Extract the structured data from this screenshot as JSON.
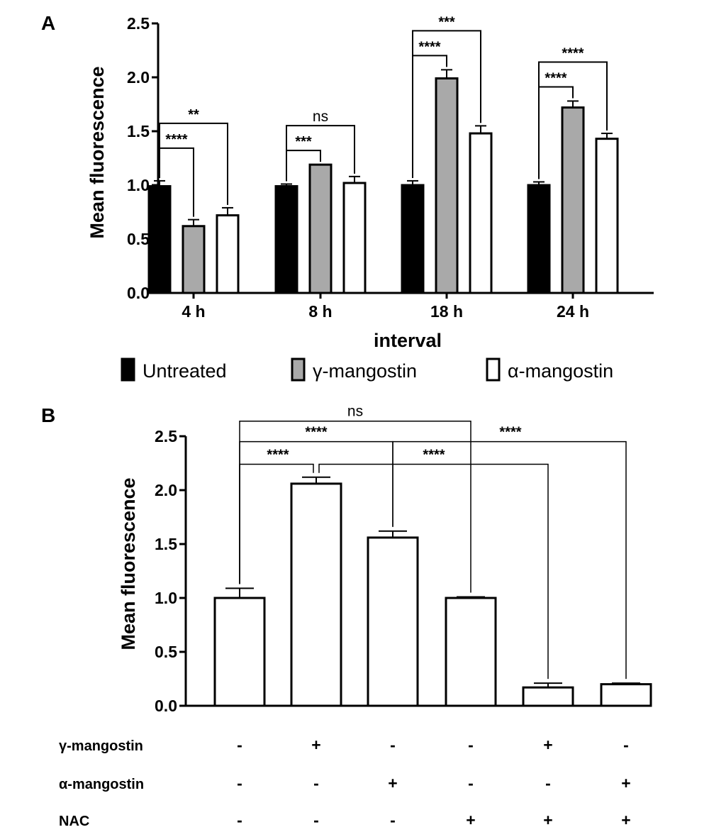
{
  "chart_data": [
    {
      "panel": "A",
      "type": "bar",
      "xlabel": "interval",
      "ylabel": "Mean fluorescence",
      "ylim": [
        0,
        2.5
      ],
      "yticks": [
        "0.0",
        "0.5",
        "1.0",
        "1.5",
        "2.0",
        "2.5"
      ],
      "categories": [
        "4 h",
        "8 h",
        "18 h",
        "24 h"
      ],
      "legend_position": "bottom",
      "series": [
        {
          "name": "Untreated",
          "color": "#000000",
          "values": [
            0.99,
            0.99,
            1.0,
            1.0
          ],
          "errors": [
            0.05,
            0.02,
            0.04,
            0.03
          ]
        },
        {
          "name": "γ-mangostin",
          "color": "#a9a9a9",
          "values": [
            0.62,
            1.19,
            1.99,
            1.72
          ],
          "errors": [
            0.06,
            0.0,
            0.08,
            0.06
          ]
        },
        {
          "name": "α-mangostin",
          "color": "#ffffff",
          "values": [
            0.72,
            1.02,
            1.48,
            1.43
          ],
          "errors": [
            0.07,
            0.06,
            0.07,
            0.05
          ]
        }
      ],
      "significance": [
        {
          "group": 0,
          "from": 0,
          "to": 1,
          "label": "****"
        },
        {
          "group": 0,
          "from": 0,
          "to": 2,
          "label": "**"
        },
        {
          "group": 1,
          "from": 0,
          "to": 1,
          "label": "***"
        },
        {
          "group": 1,
          "from": 0,
          "to": 2,
          "label": "ns"
        },
        {
          "group": 2,
          "from": 0,
          "to": 1,
          "label": "****"
        },
        {
          "group": 2,
          "from": 0,
          "to": 2,
          "label": "***"
        },
        {
          "group": 3,
          "from": 0,
          "to": 1,
          "label": "****"
        },
        {
          "group": 3,
          "from": 0,
          "to": 2,
          "label": "****"
        }
      ]
    },
    {
      "panel": "B",
      "type": "bar",
      "ylabel": "Mean fluorescence",
      "ylim": [
        0,
        2.5
      ],
      "yticks": [
        "0.0",
        "0.5",
        "1.0",
        "1.5",
        "2.0",
        "2.5"
      ],
      "values": [
        1.0,
        2.06,
        1.56,
        1.0,
        0.17,
        0.2
      ],
      "errors": [
        0.09,
        0.06,
        0.06,
        0.01,
        0.04,
        0.01
      ],
      "conditions": [
        {
          "label": "γ-mangostin",
          "signs": [
            "-",
            "+",
            "-",
            "-",
            "+",
            "-"
          ]
        },
        {
          "label": "α-mangostin",
          "signs": [
            "-",
            "-",
            "+",
            "-",
            "-",
            "+"
          ]
        },
        {
          "label": "NAC",
          "signs": [
            "-",
            "-",
            "-",
            "+",
            "+",
            "+"
          ]
        }
      ],
      "significance": [
        {
          "from": 0,
          "to": 1,
          "label": "****"
        },
        {
          "from": 1,
          "to": 4,
          "label": "****"
        },
        {
          "from": 0,
          "to": 2,
          "label": "****"
        },
        {
          "from": 2,
          "to": 5,
          "label": "****"
        },
        {
          "from": 0,
          "to": 3,
          "label": "ns"
        }
      ]
    }
  ]
}
